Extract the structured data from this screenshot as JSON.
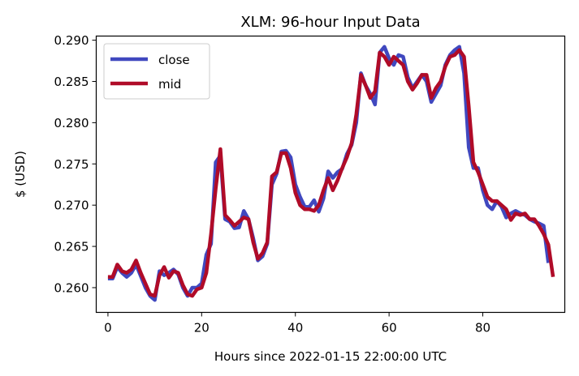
{
  "chart_data": {
    "type": "line",
    "title": "XLM: 96-hour Input Data",
    "xlabel": "Hours since 2022-01-15 22:00:00 UTC",
    "ylabel": "$ (USD)",
    "xlim": [
      -2.5,
      97.5
    ],
    "ylim": [
      0.257,
      0.2905
    ],
    "xticks": [
      0,
      20,
      40,
      60,
      80
    ],
    "yticks": [
      0.26,
      0.265,
      0.27,
      0.275,
      0.28,
      0.285,
      0.29
    ],
    "xtick_labels": [
      "0",
      "20",
      "40",
      "60",
      "80"
    ],
    "ytick_labels": [
      "0.260",
      "0.265",
      "0.270",
      "0.275",
      "0.280",
      "0.285",
      "0.290"
    ],
    "grid": false,
    "legend_position": "upper-left",
    "series": [
      {
        "name": "close",
        "color": "#4048bf",
        "values": [
          0.2611,
          0.2611,
          0.2625,
          0.2618,
          0.2613,
          0.2618,
          0.2628,
          0.2614,
          0.26,
          0.259,
          0.2585,
          0.262,
          0.2615,
          0.2618,
          0.2622,
          0.2616,
          0.26,
          0.259,
          0.26,
          0.26,
          0.2605,
          0.264,
          0.2653,
          0.2752,
          0.276,
          0.2683,
          0.268,
          0.2672,
          0.2673,
          0.2693,
          0.2683,
          0.266,
          0.2633,
          0.2638,
          0.2653,
          0.2725,
          0.2738,
          0.2765,
          0.2766,
          0.2758,
          0.2725,
          0.271,
          0.2698,
          0.2698,
          0.2706,
          0.2692,
          0.2708,
          0.2741,
          0.2733,
          0.274,
          0.2744,
          0.2762,
          0.2773,
          0.28,
          0.286,
          0.2845,
          0.2835,
          0.2822,
          0.2885,
          0.2892,
          0.2878,
          0.287,
          0.2882,
          0.288,
          0.2855,
          0.2842,
          0.285,
          0.2858,
          0.285,
          0.2825,
          0.2835,
          0.2845,
          0.287,
          0.2882,
          0.2888,
          0.2892,
          0.286,
          0.277,
          0.2745,
          0.2745,
          0.2718,
          0.27,
          0.2695,
          0.2705,
          0.2698,
          0.2685,
          0.269,
          0.2693,
          0.269,
          0.2688,
          0.2683,
          0.268,
          0.2678,
          0.2675,
          0.263
        ]
      },
      {
        "name": "mid",
        "color": "#b00b28",
        "values": [
          0.2613,
          0.2613,
          0.2628,
          0.262,
          0.2618,
          0.2622,
          0.2633,
          0.2618,
          0.2605,
          0.2592,
          0.259,
          0.2615,
          0.2625,
          0.2612,
          0.262,
          0.2618,
          0.2603,
          0.2592,
          0.259,
          0.2598,
          0.26,
          0.2618,
          0.2665,
          0.272,
          0.2768,
          0.2688,
          0.2682,
          0.2675,
          0.268,
          0.2685,
          0.2683,
          0.2655,
          0.2635,
          0.2642,
          0.2655,
          0.2735,
          0.274,
          0.2763,
          0.2763,
          0.2745,
          0.2715,
          0.27,
          0.2695,
          0.2695,
          0.2693,
          0.27,
          0.2718,
          0.2733,
          0.2718,
          0.273,
          0.2745,
          0.2758,
          0.2775,
          0.281,
          0.2858,
          0.2845,
          0.283,
          0.2838,
          0.2885,
          0.288,
          0.287,
          0.288,
          0.2875,
          0.287,
          0.285,
          0.284,
          0.2848,
          0.2858,
          0.2858,
          0.283,
          0.2842,
          0.285,
          0.2868,
          0.288,
          0.2882,
          0.2888,
          0.288,
          0.282,
          0.2752,
          0.274,
          0.2725,
          0.271,
          0.2705,
          0.2705,
          0.27,
          0.2695,
          0.2682,
          0.269,
          0.2688,
          0.269,
          0.2683,
          0.2683,
          0.2675,
          0.2665,
          0.2652,
          0.2613
        ]
      }
    ]
  }
}
